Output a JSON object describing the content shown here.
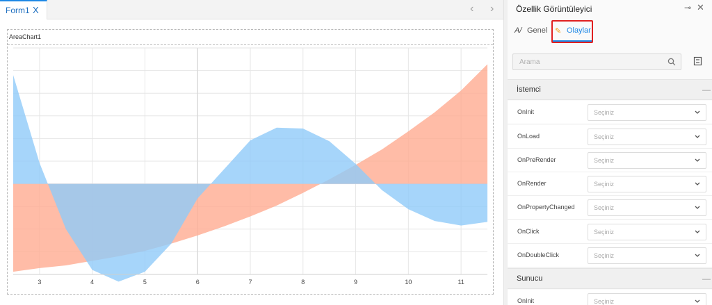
{
  "designer": {
    "tab_label": "Form1",
    "tab_close": "X",
    "nav_prev": "‹",
    "nav_next": "›",
    "chart_name": "AreaChart1"
  },
  "chart_data": {
    "type": "area",
    "x": [
      2.5,
      3,
      3.5,
      4,
      4.5,
      5,
      5.5,
      6,
      6.5,
      7,
      7.5,
      8,
      8.5,
      9,
      9.5,
      10,
      10.5,
      11,
      11.5
    ],
    "xticks": [
      "3",
      "4",
      "5",
      "6",
      "7",
      "8",
      "9",
      "10",
      "11"
    ],
    "xtick_values": [
      3,
      4,
      5,
      6,
      7,
      8,
      9,
      10,
      11
    ],
    "xlim": [
      2.5,
      11.5
    ],
    "ylim": [
      -1.0,
      1.5
    ],
    "baseline": 0,
    "grid": true,
    "series": [
      {
        "color": "#ffab91",
        "values": [
          -0.97,
          -0.93,
          -0.9,
          -0.85,
          -0.8,
          -0.74,
          -0.66,
          -0.57,
          -0.47,
          -0.36,
          -0.24,
          -0.1,
          0.05,
          0.21,
          0.38,
          0.58,
          0.79,
          1.03,
          1.32
        ]
      },
      {
        "color": "#90caf9",
        "values": [
          1.2,
          0.23,
          -0.5,
          -0.95,
          -1.08,
          -0.97,
          -0.66,
          -0.16,
          0.16,
          0.48,
          0.62,
          0.61,
          0.47,
          0.22,
          -0.07,
          -0.28,
          -0.41,
          -0.46,
          -0.42
        ]
      }
    ]
  },
  "panel": {
    "title": "Özellik Görüntüleyici",
    "pin": "⊸",
    "close": "✕",
    "tabs": {
      "general_icon": "A/",
      "general": "Genel",
      "events_icon": "✎",
      "events": "Olaylar"
    },
    "search_placeholder": "Arama",
    "sections": [
      {
        "title": "İstemci",
        "rows": [
          {
            "label": "OnInit",
            "value": "Seçiniz"
          },
          {
            "label": "OnLoad",
            "value": "Seçiniz"
          },
          {
            "label": "OnPreRender",
            "value": "Seçiniz"
          },
          {
            "label": "OnRender",
            "value": "Seçiniz"
          },
          {
            "label": "OnPropertyChanged",
            "value": "Seçiniz"
          },
          {
            "label": "OnClick",
            "value": "Seçiniz"
          },
          {
            "label": "OnDoubleClick",
            "value": "Seçiniz"
          }
        ]
      },
      {
        "title": "Sunucu",
        "rows": [
          {
            "label": "OnInit",
            "value": "Seçiniz"
          }
        ]
      }
    ],
    "colors": {
      "accent": "#1e88e5",
      "highlight": "#e02020"
    }
  }
}
